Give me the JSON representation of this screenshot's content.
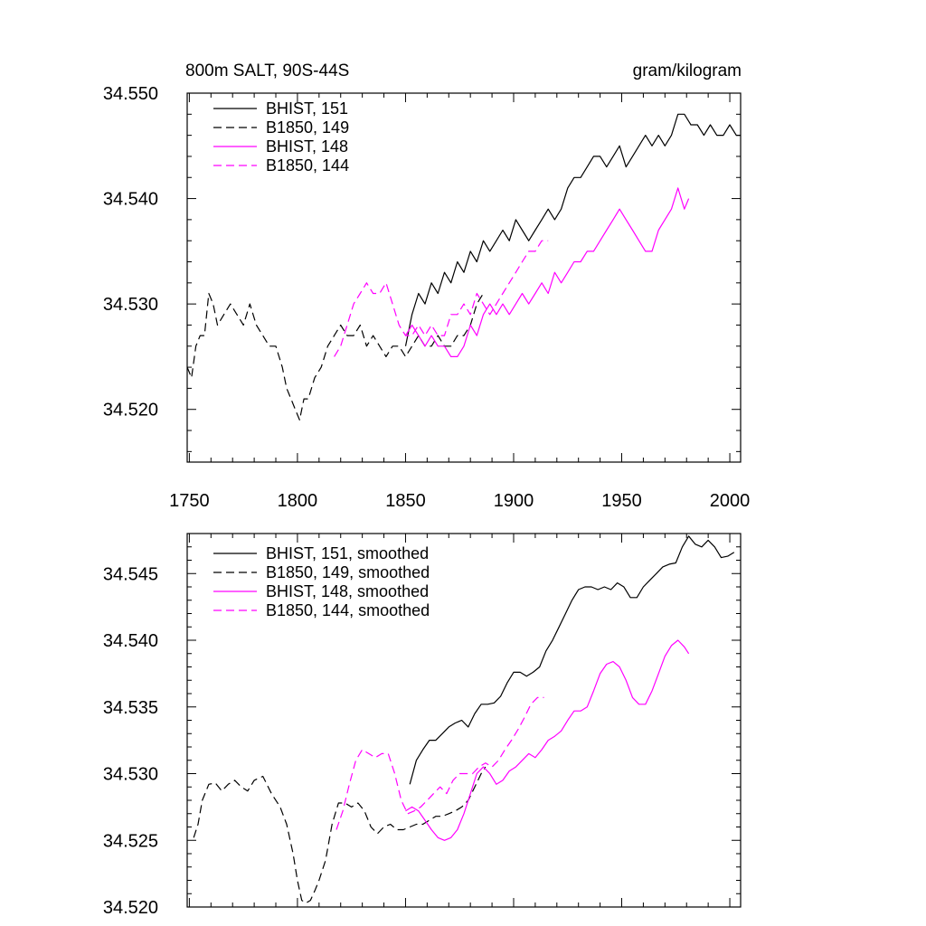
{
  "colors": {
    "black": "#000000",
    "magenta": "#ff00ff"
  },
  "chart_data": [
    {
      "type": "line",
      "title_left": "800m SALT, 90S-44S",
      "title_right": "gram/kilogram",
      "xlim": [
        1749,
        2005
      ],
      "ylim": [
        34.515,
        34.55
      ],
      "xticks": [
        1750,
        1800,
        1850,
        1900,
        1950,
        2000
      ],
      "xticklabels": [
        "1750",
        "1800",
        "1850",
        "1900",
        "1950",
        "2000"
      ],
      "yticks": [
        34.52,
        34.53,
        34.54,
        34.55
      ],
      "yticklabels": [
        "34.520",
        "34.530",
        "34.540",
        "34.550"
      ],
      "legend_position": "top-left",
      "series": [
        {
          "name": "BHIST, 151",
          "color": "#000000",
          "dash": "solid",
          "x": [
            1850,
            1853,
            1856,
            1859,
            1862,
            1865,
            1868,
            1871,
            1874,
            1877,
            1880,
            1883,
            1886,
            1889,
            1892,
            1895,
            1898,
            1901,
            1904,
            1907,
            1910,
            1913,
            1916,
            1919,
            1922,
            1925,
            1928,
            1931,
            1934,
            1937,
            1940,
            1943,
            1946,
            1949,
            1952,
            1955,
            1958,
            1961,
            1964,
            1967,
            1970,
            1973,
            1976,
            1979,
            1982,
            1985,
            1988,
            1991,
            1994,
            1997,
            2000,
            2003,
            2005
          ],
          "y": [
            34.526,
            34.529,
            34.531,
            34.53,
            34.532,
            34.531,
            34.533,
            34.532,
            34.534,
            34.533,
            34.535,
            34.534,
            34.536,
            34.535,
            34.536,
            34.537,
            34.536,
            34.538,
            34.537,
            34.536,
            34.537,
            34.538,
            34.539,
            34.538,
            34.539,
            34.541,
            34.542,
            34.542,
            34.543,
            34.544,
            34.544,
            34.543,
            34.544,
            34.545,
            34.543,
            34.544,
            34.545,
            34.546,
            34.545,
            34.546,
            34.545,
            34.546,
            34.548,
            34.548,
            34.547,
            34.547,
            34.546,
            34.547,
            34.546,
            34.546,
            34.547,
            34.546,
            34.546
          ]
        },
        {
          "name": "B1850, 149",
          "color": "#000000",
          "dash": "dashed",
          "x": [
            1749,
            1751,
            1753,
            1755,
            1757,
            1759,
            1761,
            1763,
            1766,
            1769,
            1772,
            1775,
            1778,
            1781,
            1784,
            1787,
            1790,
            1793,
            1795,
            1797,
            1799,
            1801,
            1803,
            1805,
            1808,
            1811,
            1814,
            1817,
            1820,
            1823,
            1826,
            1829,
            1832,
            1835,
            1838,
            1841,
            1844,
            1847,
            1850,
            1853,
            1856,
            1859,
            1862,
            1865,
            1868,
            1871,
            1874,
            1877,
            1880,
            1883,
            1886
          ],
          "y": [
            34.524,
            34.523,
            34.526,
            34.527,
            34.527,
            34.531,
            34.53,
            34.528,
            34.529,
            34.53,
            34.529,
            34.528,
            34.53,
            34.528,
            34.527,
            34.526,
            34.526,
            34.524,
            34.522,
            34.521,
            34.52,
            34.519,
            34.521,
            34.521,
            34.523,
            34.524,
            34.526,
            34.527,
            34.528,
            34.527,
            34.527,
            34.528,
            34.526,
            34.527,
            34.526,
            34.525,
            34.526,
            34.526,
            34.525,
            34.526,
            34.527,
            34.526,
            34.526,
            34.527,
            34.526,
            34.526,
            34.527,
            34.527,
            34.528,
            34.53,
            34.531
          ]
        },
        {
          "name": "BHIST, 148",
          "color": "#ff00ff",
          "dash": "solid",
          "x": [
            1850,
            1853,
            1856,
            1859,
            1862,
            1865,
            1868,
            1871,
            1874,
            1877,
            1880,
            1883,
            1886,
            1889,
            1892,
            1895,
            1898,
            1901,
            1904,
            1907,
            1910,
            1913,
            1916,
            1919,
            1922,
            1925,
            1928,
            1931,
            1934,
            1937,
            1940,
            1943,
            1946,
            1949,
            1952,
            1955,
            1958,
            1961,
            1964,
            1967,
            1970,
            1973,
            1976,
            1979,
            1981
          ],
          "y": [
            34.527,
            34.528,
            34.527,
            34.526,
            34.527,
            34.526,
            34.526,
            34.525,
            34.525,
            34.526,
            34.528,
            34.527,
            34.529,
            34.53,
            34.529,
            34.53,
            34.529,
            34.53,
            34.531,
            34.53,
            34.531,
            34.532,
            34.531,
            34.533,
            34.532,
            34.533,
            34.534,
            34.534,
            34.535,
            34.535,
            34.536,
            34.537,
            34.538,
            34.539,
            34.538,
            34.537,
            34.536,
            34.535,
            34.535,
            34.537,
            34.538,
            34.539,
            34.541,
            34.539,
            34.54
          ]
        },
        {
          "name": "B1850, 144",
          "color": "#ff00ff",
          "dash": "dashed",
          "x": [
            1817,
            1820,
            1823,
            1826,
            1829,
            1832,
            1835,
            1838,
            1841,
            1844,
            1847,
            1850,
            1853,
            1856,
            1859,
            1862,
            1865,
            1868,
            1871,
            1874,
            1877,
            1880,
            1883,
            1886,
            1889,
            1892,
            1895,
            1898,
            1901,
            1904,
            1907,
            1910,
            1913,
            1916
          ],
          "y": [
            34.525,
            34.526,
            34.528,
            34.53,
            34.531,
            34.532,
            34.531,
            34.531,
            34.532,
            34.53,
            34.528,
            34.527,
            34.527,
            34.528,
            34.527,
            34.528,
            34.527,
            34.527,
            34.529,
            34.529,
            34.53,
            34.529,
            34.531,
            34.53,
            34.529,
            34.53,
            34.531,
            34.532,
            34.533,
            34.534,
            34.535,
            34.535,
            34.536,
            34.536
          ]
        }
      ]
    },
    {
      "type": "line",
      "xlim": [
        1749,
        2005
      ],
      "ylim": [
        34.52,
        34.548
      ],
      "yticks": [
        34.52,
        34.525,
        34.53,
        34.535,
        34.54,
        34.545
      ],
      "yticklabels": [
        "34.520",
        "34.525",
        "34.530",
        "34.535",
        "34.540",
        "34.545"
      ],
      "legend_position": "top-left",
      "series": [
        {
          "name": "BHIST, 151, smoothed",
          "color": "#000000",
          "dash": "solid",
          "x": [
            1852,
            1855,
            1858,
            1861,
            1864,
            1867,
            1870,
            1873,
            1876,
            1879,
            1882,
            1885,
            1888,
            1891,
            1894,
            1897,
            1900,
            1903,
            1906,
            1909,
            1912,
            1915,
            1918,
            1921,
            1924,
            1927,
            1930,
            1933,
            1936,
            1939,
            1942,
            1945,
            1948,
            1951,
            1954,
            1957,
            1960,
            1963,
            1966,
            1969,
            1972,
            1975,
            1978,
            1981,
            1984,
            1987,
            1990,
            1993,
            1996,
            1999,
            2002
          ],
          "y": [
            34.5292,
            34.531,
            34.5318,
            34.5325,
            34.5325,
            34.533,
            34.5335,
            34.5338,
            34.534,
            34.5335,
            34.5345,
            34.5352,
            34.5352,
            34.5353,
            34.5358,
            34.5368,
            34.5376,
            34.5376,
            34.5373,
            34.5376,
            34.538,
            34.5392,
            34.54,
            34.541,
            34.542,
            34.543,
            34.5438,
            34.544,
            34.544,
            34.5438,
            34.544,
            34.5438,
            34.5443,
            34.544,
            34.5432,
            34.5432,
            34.544,
            34.5445,
            34.545,
            34.5455,
            34.5457,
            34.5458,
            34.547,
            34.5478,
            34.5472,
            34.547,
            34.5475,
            34.547,
            34.5462,
            34.5463,
            34.5466
          ]
        },
        {
          "name": "B1850, 149, smoothed",
          "color": "#000000",
          "dash": "dashed",
          "x": [
            1752,
            1754,
            1756,
            1759,
            1762,
            1765,
            1768,
            1771,
            1774,
            1777,
            1780,
            1784,
            1788,
            1792,
            1795,
            1798,
            1800,
            1802,
            1804,
            1806,
            1808,
            1810,
            1813,
            1816,
            1819,
            1822,
            1825,
            1828,
            1831,
            1834,
            1837,
            1840,
            1843,
            1846,
            1849,
            1852,
            1855,
            1858,
            1861,
            1864,
            1867,
            1870,
            1873,
            1876,
            1879,
            1882,
            1885,
            1887
          ],
          "y": [
            34.5252,
            34.5262,
            34.528,
            34.5292,
            34.5293,
            34.5287,
            34.5292,
            34.5295,
            34.529,
            34.5287,
            34.5295,
            34.5298,
            34.5285,
            34.5275,
            34.5262,
            34.524,
            34.522,
            34.5205,
            34.5203,
            34.5205,
            34.5212,
            34.522,
            34.5235,
            34.5262,
            34.5278,
            34.5278,
            34.5275,
            34.5278,
            34.5272,
            34.526,
            34.5255,
            34.526,
            34.5262,
            34.5258,
            34.5258,
            34.526,
            34.5262,
            34.5262,
            34.5265,
            34.5268,
            34.5268,
            34.527,
            34.5272,
            34.5275,
            34.528,
            34.529,
            34.53,
            34.5305
          ]
        },
        {
          "name": "BHIST, 148, smoothed",
          "color": "#ff00ff",
          "dash": "solid",
          "x": [
            1850,
            1853,
            1856,
            1859,
            1862,
            1865,
            1868,
            1871,
            1874,
            1877,
            1880,
            1883,
            1886,
            1889,
            1892,
            1895,
            1898,
            1901,
            1904,
            1907,
            1910,
            1913,
            1916,
            1919,
            1922,
            1925,
            1928,
            1931,
            1934,
            1937,
            1940,
            1943,
            1946,
            1949,
            1952,
            1955,
            1958,
            1961,
            1964,
            1967,
            1970,
            1973,
            1976,
            1979,
            1981
          ],
          "y": [
            34.5272,
            34.5275,
            34.5272,
            34.5265,
            34.5258,
            34.5252,
            34.525,
            34.5252,
            34.5258,
            34.527,
            34.5285,
            34.53,
            34.5305,
            34.53,
            34.5292,
            34.5295,
            34.5302,
            34.5305,
            34.531,
            34.5315,
            34.5312,
            34.5318,
            34.5325,
            34.5328,
            34.5332,
            34.534,
            34.5347,
            34.5347,
            34.535,
            34.5362,
            34.5375,
            34.5382,
            34.5384,
            34.538,
            34.537,
            34.5357,
            34.5352,
            34.5352,
            34.5362,
            34.5375,
            34.5388,
            34.5396,
            34.54,
            34.5395,
            34.539
          ]
        },
        {
          "name": "B1850, 144, smoothed",
          "color": "#ff00ff",
          "dash": "dashed",
          "x": [
            1818,
            1821,
            1824,
            1827,
            1830,
            1833,
            1836,
            1839,
            1842,
            1845,
            1848,
            1851,
            1854,
            1857,
            1860,
            1863,
            1866,
            1869,
            1872,
            1875,
            1878,
            1881,
            1884,
            1887,
            1890,
            1893,
            1896,
            1899,
            1902,
            1905,
            1908,
            1911,
            1914
          ],
          "y": [
            34.5258,
            34.5272,
            34.5292,
            34.531,
            34.5318,
            34.5315,
            34.5312,
            34.5315,
            34.5315,
            34.53,
            34.528,
            34.527,
            34.5272,
            34.5275,
            34.528,
            34.5285,
            34.529,
            34.5285,
            34.5295,
            34.53,
            34.53,
            34.53,
            34.5305,
            34.5308,
            34.5305,
            34.531,
            34.5318,
            34.5325,
            34.5333,
            34.5342,
            34.5352,
            34.5357,
            34.5357
          ]
        }
      ]
    }
  ]
}
